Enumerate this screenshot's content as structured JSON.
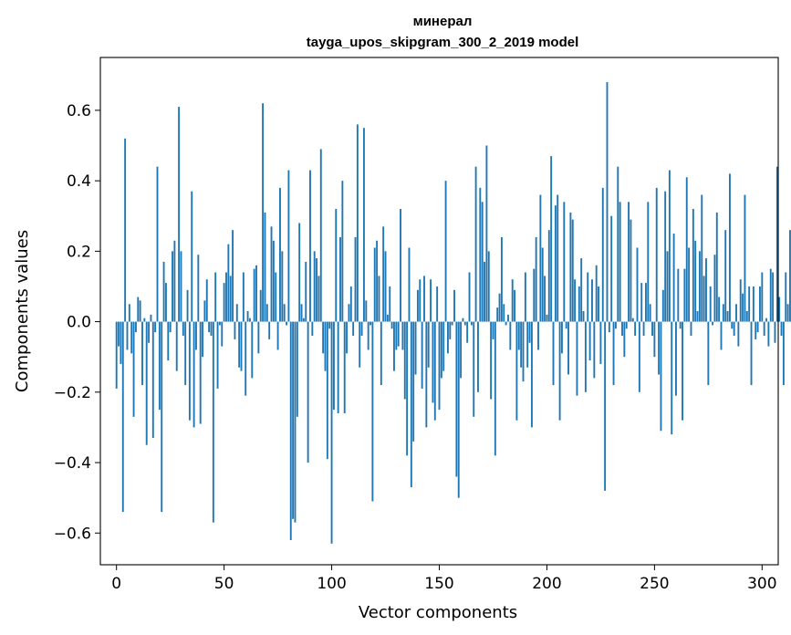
{
  "chart_data": {
    "type": "bar",
    "title": "минерал",
    "subtitle": "tayga_upos_skipgram_300_2_2019 model",
    "xlabel": "Vector components",
    "ylabel": "Components values",
    "xlim": [
      -7.5,
      307.5
    ],
    "ylim": [
      -0.69,
      0.75
    ],
    "xticks": [
      0,
      50,
      100,
      150,
      200,
      250,
      300
    ],
    "xtick_labels": [
      "0",
      "50",
      "100",
      "150",
      "200",
      "250",
      "300"
    ],
    "yticks": [
      -0.6,
      -0.4,
      -0.2,
      0.0,
      0.2,
      0.4,
      0.6
    ],
    "ytick_labels": [
      "−0.6",
      "−0.4",
      "−0.2",
      "0.0",
      "0.2",
      "0.4",
      "0.6"
    ],
    "grid": false,
    "bar_color": "#1f77b4",
    "x_start": 0,
    "values": [
      -0.19,
      -0.07,
      -0.12,
      -0.54,
      0.52,
      -0.08,
      0.05,
      -0.09,
      -0.27,
      -0.03,
      0.07,
      0.06,
      -0.18,
      0.01,
      -0.35,
      -0.06,
      0.02,
      -0.33,
      -0.03,
      0.44,
      -0.25,
      -0.54,
      0.17,
      0.11,
      -0.11,
      -0.03,
      0.2,
      0.23,
      -0.14,
      0.61,
      0.2,
      -0.04,
      -0.18,
      0.09,
      -0.28,
      0.37,
      -0.3,
      -0.08,
      0.19,
      -0.29,
      -0.1,
      0.06,
      0.12,
      -0.03,
      -0.04,
      -0.57,
      0.14,
      -0.19,
      -0.01,
      -0.07,
      0.11,
      0.14,
      0.22,
      0.13,
      0.26,
      -0.05,
      0.05,
      -0.13,
      -0.14,
      0.14,
      -0.21,
      0.03,
      0.01,
      -0.16,
      0.15,
      0.16,
      -0.09,
      0.09,
      0.62,
      0.31,
      0.05,
      -0.05,
      0.27,
      0.23,
      0.14,
      -0.08,
      0.38,
      0.2,
      0.05,
      -0.01,
      0.43,
      -0.62,
      -0.56,
      -0.57,
      -0.27,
      0.28,
      0.05,
      0.01,
      0.17,
      -0.4,
      0.43,
      -0.04,
      0.2,
      0.18,
      0.13,
      0.49,
      -0.09,
      -0.14,
      -0.39,
      -0.02,
      -0.63,
      -0.25,
      0.32,
      -0.26,
      0.24,
      0.4,
      -0.26,
      -0.09,
      0.05,
      0.1,
      -0.04,
      0.24,
      0.56,
      -0.13,
      -0.04,
      0.55,
      0.06,
      -0.08,
      -0.01,
      -0.51,
      0.21,
      0.23,
      0.13,
      -0.18,
      0.27,
      0.2,
      0.02,
      0.1,
      -0.02,
      -0.14,
      -0.08,
      -0.07,
      0.32,
      -0.08,
      -0.22,
      -0.38,
      0.21,
      -0.47,
      -0.34,
      -0.15,
      0.09,
      0.12,
      -0.19,
      0.13,
      -0.3,
      -0.13,
      0.12,
      -0.23,
      -0.28,
      0.1,
      -0.25,
      -0.16,
      -0.14,
      0.4,
      -0.09,
      -0.05,
      -0.01,
      0.09,
      -0.44,
      -0.5,
      -0.16,
      0.01,
      -0.01,
      -0.06,
      0.14,
      -0.01,
      -0.27,
      0.44,
      -0.2,
      0.38,
      0.34,
      0.17,
      0.5,
      0.2,
      -0.22,
      -0.05,
      -0.38,
      0.04,
      0.08,
      0.24,
      0.05,
      -0.01,
      0.02,
      -0.08,
      0.12,
      0.09,
      -0.28,
      -0.08,
      -0.13,
      -0.17,
      0.14,
      -0.13,
      -0.06,
      -0.3,
      0.15,
      0.24,
      -0.08,
      0.36,
      0.21,
      0.13,
      0.02,
      0.26,
      0.47,
      -0.18,
      0.33,
      0.36,
      -0.28,
      -0.09,
      0.34,
      -0.02,
      -0.15,
      0.31,
      0.29,
      0.12,
      -0.21,
      0.1,
      0.18,
      0.03,
      -0.2,
      0.14,
      -0.11,
      0.12,
      -0.16,
      0.16,
      0.1,
      -0.12,
      0.38,
      -0.48,
      0.68,
      -0.03,
      0.3,
      -0.18,
      -0.02,
      0.44,
      0.34,
      -0.04,
      -0.1,
      -0.02,
      0.34,
      0.29,
      0.01,
      -0.04,
      0.21,
      -0.2,
      0.11,
      -0.04,
      0.11,
      0.34,
      0.05,
      -0.04,
      -0.1,
      0.38,
      -0.15,
      -0.31,
      0.09,
      0.37,
      0.2,
      0.43,
      -0.32,
      0.25,
      -0.21,
      0.15,
      -0.02,
      -0.28,
      0.15,
      0.41,
      0.21,
      -0.04,
      0.32,
      0.23,
      0.03,
      0.2,
      0.36,
      0.13,
      0.18,
      -0.18,
      0.1,
      -0.01,
      0.19,
      0.31,
      0.07,
      -0.08,
      0.05,
      0.26,
      0.03,
      0.42,
      -0.02,
      -0.04,
      0.05,
      -0.07,
      0.12,
      0.08,
      0.36,
      0.03,
      0.1,
      -0.18,
      0.1,
      -0.05,
      -0.03,
      0.1,
      0.14,
      -0.04,
      0.01,
      -0.07,
      0.15,
      0.14,
      -0.06,
      0.44,
      0.07,
      -0.04,
      -0.18,
      0.14,
      0.05,
      0.26
    ]
  }
}
